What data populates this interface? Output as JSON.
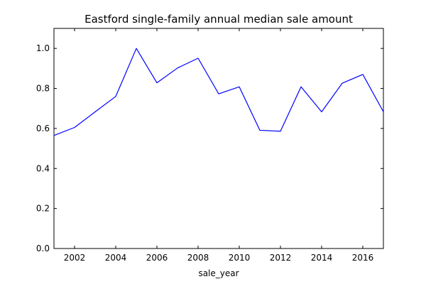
{
  "chart_data": {
    "type": "line",
    "title": "Eastford single-family annual median sale amount",
    "xlabel": "sale_year",
    "ylabel": "",
    "xlim": [
      2001,
      2017
    ],
    "ylim": [
      0.0,
      1.1
    ],
    "xticks": [
      2002,
      2004,
      2006,
      2008,
      2010,
      2012,
      2014,
      2016
    ],
    "yticks": [
      0.0,
      0.2,
      0.4,
      0.6,
      0.8,
      1.0
    ],
    "xtick_labels": [
      "2002",
      "2004",
      "2006",
      "2008",
      "2010",
      "2012",
      "2014",
      "2016"
    ],
    "ytick_labels": [
      "0.0",
      "0.2",
      "0.4",
      "0.6",
      "0.8",
      "1.0"
    ],
    "grid": false,
    "series": [
      {
        "color": "#0000ff",
        "x": [
          2001,
          2002,
          2003,
          2004,
          2005,
          2006,
          2007,
          2008,
          2009,
          2010,
          2011,
          2012,
          2013,
          2014,
          2015,
          2016,
          2017
        ],
        "y": [
          0.565,
          0.605,
          0.683,
          0.76,
          1.0,
          0.828,
          0.902,
          0.951,
          0.773,
          0.808,
          0.591,
          0.586,
          0.808,
          0.683,
          0.826,
          0.87,
          0.683
        ]
      }
    ]
  }
}
